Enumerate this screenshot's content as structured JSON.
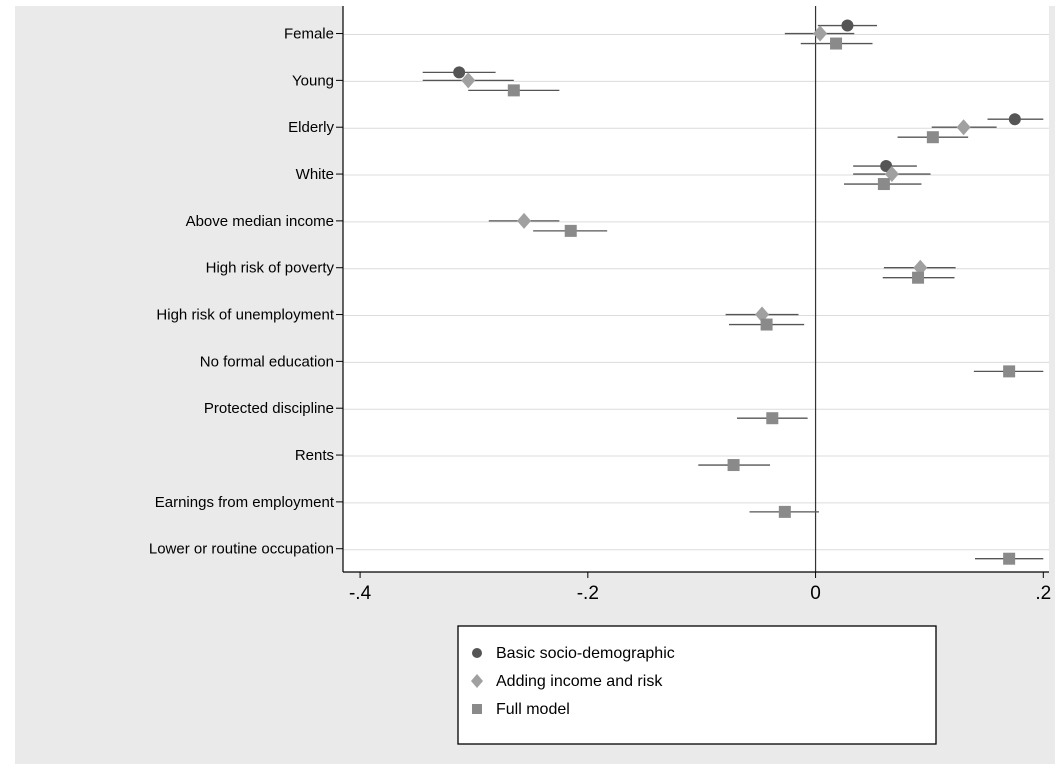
{
  "page": {
    "title": ""
  },
  "chart_data": {
    "type": "scatter",
    "subtype": "coefficient-plot",
    "title": "",
    "xlabel": "",
    "ylabel": "",
    "xlim": [
      -0.415,
      0.205
    ],
    "xticks": [
      -0.4,
      -0.2,
      0,
      0.2
    ],
    "xtick_labels": [
      "-.4",
      "-.2",
      "0",
      ".2"
    ],
    "reference_line_x": 0,
    "grid": "horizontal",
    "legend_position": "bottom",
    "categories": [
      "Female",
      "Young",
      "Elderly",
      "White",
      "Above median income",
      "High risk of poverty",
      "High risk of unemployment",
      "No formal education",
      "Protected discipline",
      "Rents",
      "Earnings from employment",
      "Lower or routine occupation"
    ],
    "series": [
      {
        "name": "Basic socio-demographic",
        "marker": "circle",
        "color": "#555555",
        "points": [
          {
            "category": "Female",
            "estimate": 0.028,
            "ci": [
              0.002,
              0.054
            ]
          },
          {
            "category": "Young",
            "estimate": -0.313,
            "ci": [
              -0.345,
              -0.281
            ]
          },
          {
            "category": "Elderly",
            "estimate": 0.175,
            "ci": [
              0.151,
              0.2
            ]
          },
          {
            "category": "White",
            "estimate": 0.062,
            "ci": [
              0.033,
              0.089
            ]
          }
        ]
      },
      {
        "name": "Adding income and risk",
        "marker": "diamond",
        "color": "#a0a0a0",
        "points": [
          {
            "category": "Female",
            "estimate": 0.004,
            "ci": [
              -0.027,
              0.034
            ]
          },
          {
            "category": "Young",
            "estimate": -0.305,
            "ci": [
              -0.345,
              -0.265
            ]
          },
          {
            "category": "Elderly",
            "estimate": 0.13,
            "ci": [
              0.102,
              0.159
            ]
          },
          {
            "category": "White",
            "estimate": 0.067,
            "ci": [
              0.033,
              0.101
            ]
          },
          {
            "category": "Above median income",
            "estimate": -0.256,
            "ci": [
              -0.287,
              -0.225
            ]
          },
          {
            "category": "High risk of poverty",
            "estimate": 0.092,
            "ci": [
              0.06,
              0.123
            ]
          },
          {
            "category": "High risk of unemployment",
            "estimate": -0.047,
            "ci": [
              -0.079,
              -0.015
            ]
          }
        ]
      },
      {
        "name": "Full model",
        "marker": "square",
        "color": "#8a8a8a",
        "points": [
          {
            "category": "Female",
            "estimate": 0.018,
            "ci": [
              -0.013,
              0.05
            ]
          },
          {
            "category": "Young",
            "estimate": -0.265,
            "ci": [
              -0.305,
              -0.225
            ]
          },
          {
            "category": "Elderly",
            "estimate": 0.103,
            "ci": [
              0.072,
              0.134
            ]
          },
          {
            "category": "White",
            "estimate": 0.06,
            "ci": [
              0.025,
              0.093
            ]
          },
          {
            "category": "Above median income",
            "estimate": -0.215,
            "ci": [
              -0.248,
              -0.183
            ]
          },
          {
            "category": "High risk of poverty",
            "estimate": 0.09,
            "ci": [
              0.059,
              0.122
            ]
          },
          {
            "category": "High risk of unemployment",
            "estimate": -0.043,
            "ci": [
              -0.076,
              -0.01
            ]
          },
          {
            "category": "No formal education",
            "estimate": 0.17,
            "ci": [
              0.139,
              0.2
            ]
          },
          {
            "category": "Protected discipline",
            "estimate": -0.038,
            "ci": [
              -0.069,
              -0.007
            ]
          },
          {
            "category": "Rents",
            "estimate": -0.072,
            "ci": [
              -0.103,
              -0.04
            ]
          },
          {
            "category": "Earnings from employment",
            "estimate": -0.027,
            "ci": [
              -0.058,
              0.003
            ]
          },
          {
            "category": "Lower or routine occupation",
            "estimate": 0.17,
            "ci": [
              0.14,
              0.2
            ]
          }
        ]
      }
    ]
  },
  "colors": {
    "background": "#eaeaea",
    "plot_area": "#ffffff",
    "grid": "#dcdcdc",
    "ci": "#555555"
  }
}
